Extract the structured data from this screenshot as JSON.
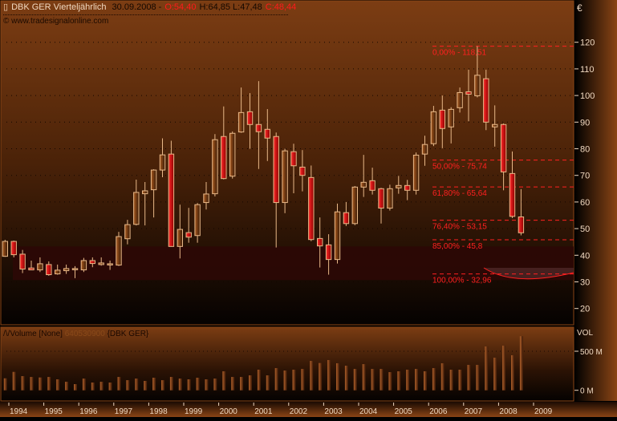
{
  "header": {
    "symbol_title": "DBK GER Vierteljährlich",
    "date": "30.09.2008 -",
    "open": "O:54,40",
    "high_low": "H:64,85 L:47,48",
    "close": "C:48,44",
    "copyright": "© www.tradesignalonline.com",
    "icon": "candlestick-icon"
  },
  "price_axis": {
    "currency": "€",
    "ticks": [
      "120",
      "110",
      "100",
      "90",
      "80",
      "70",
      "60",
      "50",
      "40",
      "30",
      "20"
    ]
  },
  "volume_panel": {
    "label": "/\\/Volume [None]",
    "value": "640530900",
    "symbol": "{DBK GER}",
    "axis_title": "VOL",
    "ticks": [
      "500 M",
      "0 M"
    ]
  },
  "time_axis": {
    "years": [
      "1994",
      "1995",
      "1996",
      "1997",
      "1998",
      "1999",
      "2000",
      "2001",
      "2002",
      "2003",
      "2004",
      "2005",
      "2006",
      "2007",
      "2008",
      "2009"
    ]
  },
  "fibonacci": [
    {
      "label": "0,00% - 118,51",
      "price": 118.51
    },
    {
      "label": "50,00% - 75,74",
      "price": 75.74
    },
    {
      "label": "61,80% - 65,64",
      "price": 65.64
    },
    {
      "label": "76,40% - 53,15",
      "price": 53.15
    },
    {
      "label": "85,00% - 45,8",
      "price": 45.8
    },
    {
      "label": "100,00% - 32,96",
      "price": 32.96
    }
  ],
  "colors": {
    "up_fill": "#6a3410",
    "down_fill": "#e00000",
    "candle_outline": "#e8b888",
    "fib_line": "#ff2020",
    "zone": "#2c0805"
  },
  "chart_data": {
    "type": "candlestick",
    "interval": "quarterly",
    "ylim": [
      20,
      120
    ],
    "ohlc": [
      [
        39.6,
        45.8,
        39.4,
        45.2
      ],
      [
        45.2,
        45.5,
        39.2,
        40.2
      ],
      [
        40.4,
        42.0,
        33.3,
        34.8
      ],
      [
        35.2,
        38.0,
        34.4,
        34.5
      ],
      [
        34.5,
        39.2,
        33.7,
        36.8
      ],
      [
        36.5,
        37.7,
        32.3,
        32.7
      ],
      [
        33.0,
        36.5,
        32.7,
        34.4
      ],
      [
        34.2,
        36.5,
        33.0,
        35.0
      ],
      [
        34.8,
        35.9,
        31.4,
        35.0
      ],
      [
        34.5,
        39.0,
        33.7,
        38.0
      ],
      [
        38.0,
        39.2,
        35.5,
        36.9
      ],
      [
        36.5,
        39.2,
        36.1,
        37.1
      ],
      [
        36.7,
        38.0,
        34.5,
        36.8
      ],
      [
        36.3,
        48.8,
        36.0,
        47.0
      ],
      [
        46.2,
        53.3,
        44.1,
        51.5
      ],
      [
        51.6,
        68.4,
        51.2,
        63.6
      ],
      [
        63.1,
        67.5,
        51.2,
        64.2
      ],
      [
        64.6,
        72.3,
        54.2,
        72.0
      ],
      [
        72.0,
        83.9,
        69.3,
        77.7
      ],
      [
        78.0,
        83.0,
        43.2,
        43.3
      ],
      [
        43.3,
        59.0,
        38.8,
        49.7
      ],
      [
        48.5,
        57.8,
        44.7,
        46.8
      ],
      [
        47.4,
        59.6,
        44.7,
        59.0
      ],
      [
        59.8,
        67.5,
        57.2,
        63.0
      ],
      [
        63.1,
        85.5,
        62.1,
        83.4
      ],
      [
        84.6,
        95.9,
        68.5,
        68.8
      ],
      [
        69.7,
        86.5,
        68.8,
        85.8
      ],
      [
        86.3,
        103.0,
        86.0,
        93.6
      ],
      [
        93.9,
        100.9,
        80.0,
        89.1
      ],
      [
        89.1,
        105.4,
        72.4,
        86.4
      ],
      [
        87.3,
        94.9,
        75.4,
        84.0
      ],
      [
        84.6,
        86.1,
        42.9,
        59.8
      ],
      [
        59.8,
        80.0,
        55.8,
        79.2
      ],
      [
        78.9,
        81.9,
        63.3,
        73.6
      ],
      [
        73.1,
        79.5,
        64.0,
        70.0
      ],
      [
        69.2,
        73.7,
        45.3,
        45.9
      ],
      [
        46.3,
        54.2,
        35.4,
        43.5
      ],
      [
        43.9,
        47.9,
        32.7,
        38.4
      ],
      [
        38.4,
        59.4,
        36.9,
        56.3
      ],
      [
        56.0,
        60.0,
        51.0,
        51.9
      ],
      [
        51.9,
        66.0,
        51.3,
        65.6
      ],
      [
        65.6,
        77.7,
        61.9,
        67.4
      ],
      [
        68.0,
        72.9,
        62.8,
        64.4
      ],
      [
        65.0,
        65.3,
        51.9,
        57.7
      ],
      [
        57.7,
        66.5,
        56.8,
        65.0
      ],
      [
        65.3,
        69.8,
        63.1,
        66.2
      ],
      [
        66.2,
        68.3,
        60.7,
        64.4
      ],
      [
        64.4,
        78.6,
        62.8,
        77.6
      ],
      [
        78.0,
        84.9,
        73.6,
        81.6
      ],
      [
        81.9,
        96.1,
        81.0,
        93.9
      ],
      [
        94.5,
        100.0,
        80.2,
        87.6
      ],
      [
        88.2,
        95.6,
        82.0,
        94.8
      ],
      [
        95.4,
        103.0,
        93.6,
        101.1
      ],
      [
        101.4,
        109.7,
        90.3,
        100.5
      ],
      [
        99.9,
        118.51,
        99.3,
        107.6
      ],
      [
        106.3,
        109.7,
        87.0,
        90.0
      ],
      [
        88.2,
        96.3,
        80.8,
        89.1
      ],
      [
        89.1,
        89.5,
        64.4,
        71.3
      ],
      [
        70.7,
        79.0,
        54.0,
        54.6
      ],
      [
        54.4,
        64.85,
        47.48,
        48.44
      ]
    ],
    "volume_millions": [
      142,
      218,
      168,
      158,
      152,
      158,
      130,
      101,
      73,
      139,
      92,
      101,
      92,
      158,
      120,
      139,
      111,
      149,
      120,
      158,
      139,
      130,
      149,
      130,
      139,
      225,
      158,
      158,
      177,
      244,
      177,
      263,
      234,
      244,
      253,
      348,
      323,
      358,
      320,
      291,
      253,
      310,
      253,
      253,
      215,
      225,
      244,
      253,
      225,
      263,
      320,
      244,
      244,
      301,
      301,
      519,
      386,
      528,
      415,
      640.5
    ],
    "volume_ylim": [
      0,
      500
    ],
    "support_zone": [
      30.7,
      43.3
    ]
  }
}
